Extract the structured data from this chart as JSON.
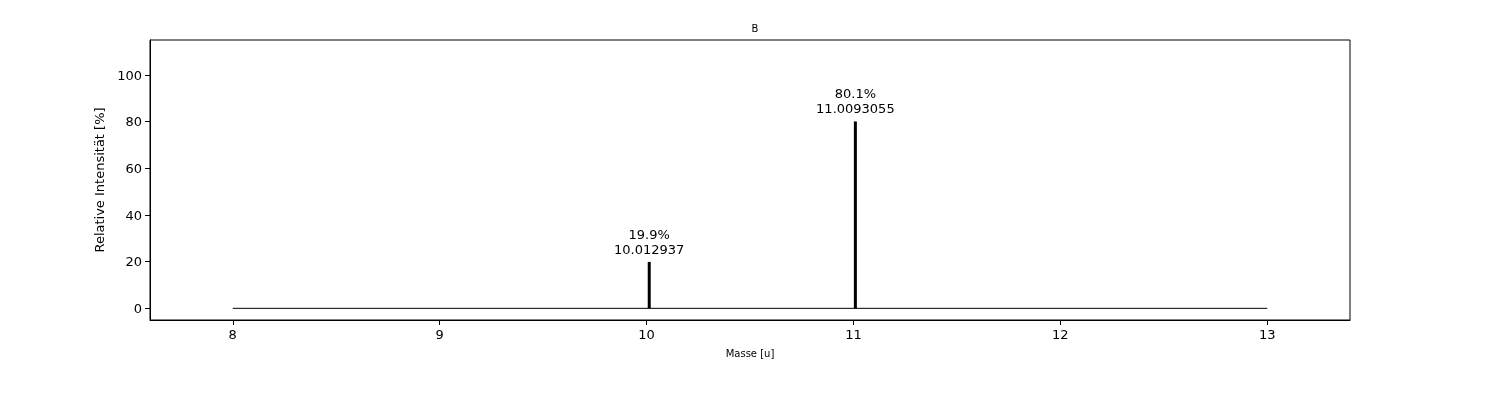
{
  "chart_data": {
    "type": "bar",
    "title": "B",
    "xlabel": "Masse [u]",
    "ylabel": "Relative Intensität [%]",
    "xlim": [
      7.6,
      13.4
    ],
    "xticks": [
      8,
      9,
      10,
      11,
      12,
      13
    ],
    "ylim": [
      -5,
      115
    ],
    "yticks": [
      0,
      20,
      40,
      60,
      80,
      100
    ],
    "grid": false,
    "marker": "none",
    "series": [
      {
        "type": "line",
        "color": "#000000",
        "x": [
          8,
          13
        ],
        "values": [
          0,
          0
        ]
      },
      {
        "color": "#000000",
        "x": [
          10.012937,
          11.0093055
        ],
        "values": [
          19.9,
          80.1
        ],
        "value_labels": [
          "19.9%\n10.012937",
          "80.1%\n11.0093055"
        ]
      }
    ]
  }
}
